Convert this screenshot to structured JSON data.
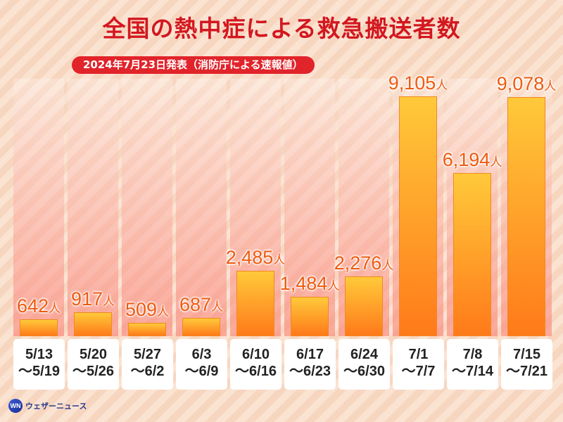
{
  "title": "全国の熱中症による救急搬送者数",
  "subtitle": "2024年7月23日発表（消防庁による速報値）",
  "brand": {
    "mark": "WN",
    "name": "ウェザーニュース"
  },
  "colors": {
    "title": "#d3171f",
    "value_text": "#ef5a0f",
    "bar_top": "#ffc93a",
    "bar_bottom": "#ff7a1a"
  },
  "chart_data": {
    "type": "bar",
    "title": "全国の熱中症による救急搬送者数",
    "subtitle": "2024年7月23日発表（消防庁による速報値）",
    "unit": "人",
    "categories": [
      [
        "5/13",
        "〜5/19"
      ],
      [
        "5/20",
        "〜5/26"
      ],
      [
        "5/27",
        "〜6/2"
      ],
      [
        "6/3",
        "〜6/9"
      ],
      [
        "6/10",
        "〜6/16"
      ],
      [
        "6/17",
        "〜6/23"
      ],
      [
        "6/24",
        "〜6/30"
      ],
      [
        "7/1",
        "〜7/7"
      ],
      [
        "7/8",
        "〜7/14"
      ],
      [
        "7/15",
        "〜7/21"
      ]
    ],
    "values": [
      642,
      917,
      509,
      687,
      2485,
      1484,
      2276,
      9105,
      6194,
      9078
    ],
    "labels": [
      "642",
      "917",
      "509",
      "687",
      "2,485",
      "1,484",
      "2,276",
      "9,105",
      "6,194",
      "9,078"
    ],
    "ylim": [
      0,
      9300
    ],
    "grid": false
  }
}
